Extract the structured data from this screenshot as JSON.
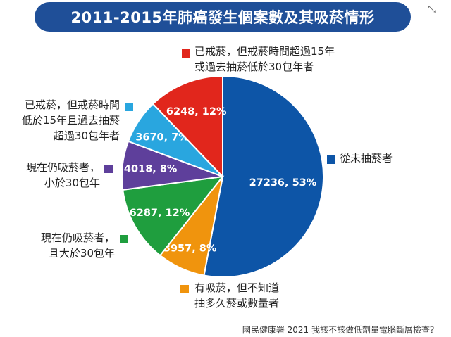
{
  "title": "2011-2015年肺癌發生個案數及其吸菸情形",
  "corner_icon": "expand-icon",
  "source": "國民健康署 2021 我該不該做低劑量電腦斷層檢查？",
  "chart_data": {
    "type": "pie",
    "title": "2011-2015年肺癌發生個案數及其吸菸情形",
    "start": "top, clockwise",
    "series": [
      {
        "name": "從未抽菸者",
        "value": 27236,
        "percent": 53,
        "label": "27236, 53%",
        "color": "#0d55a7",
        "legend_lines": [
          "從未抽菸者"
        ]
      },
      {
        "name": "有吸菸，但不知道抽多久菸或數量者",
        "value": 3957,
        "percent": 8,
        "label": "3957, 8%",
        "color": "#f0940d",
        "legend_lines": [
          "有吸菸，但不知道",
          "抽多久菸或數量者"
        ]
      },
      {
        "name": "現在仍吸菸者，且大於30包年",
        "value": 6287,
        "percent": 12,
        "label": "6287, 12%",
        "color": "#1f9e3e",
        "legend_lines": [
          "現在仍吸菸者，",
          "且大於30包年"
        ]
      },
      {
        "name": "現在仍吸菸者，小於30包年",
        "value": 4018,
        "percent": 8,
        "label": "4018, 8%",
        "color": "#5e3f9b",
        "legend_lines": [
          "現在仍吸菸者，",
          "小於30包年"
        ]
      },
      {
        "name": "已戒菸，但戒菸時間低於15年且過去抽菸超過30包年者",
        "value": 3670,
        "percent": 7,
        "label": "3670, 7%",
        "color": "#29a6df",
        "legend_lines": [
          "已戒菸，但戒菸時間",
          "低於15年且過去抽菸",
          "超過30包年者"
        ]
      },
      {
        "name": "已戒菸，但戒菸時間超過15年或過去抽菸低於30包年者",
        "value": 6248,
        "percent": 12,
        "label": "6248, 12%",
        "color": "#e1261c",
        "legend_lines": [
          "已戒菸，但戒菸時間超過15年",
          "或過去抽菸低於30包年者"
        ]
      }
    ]
  }
}
